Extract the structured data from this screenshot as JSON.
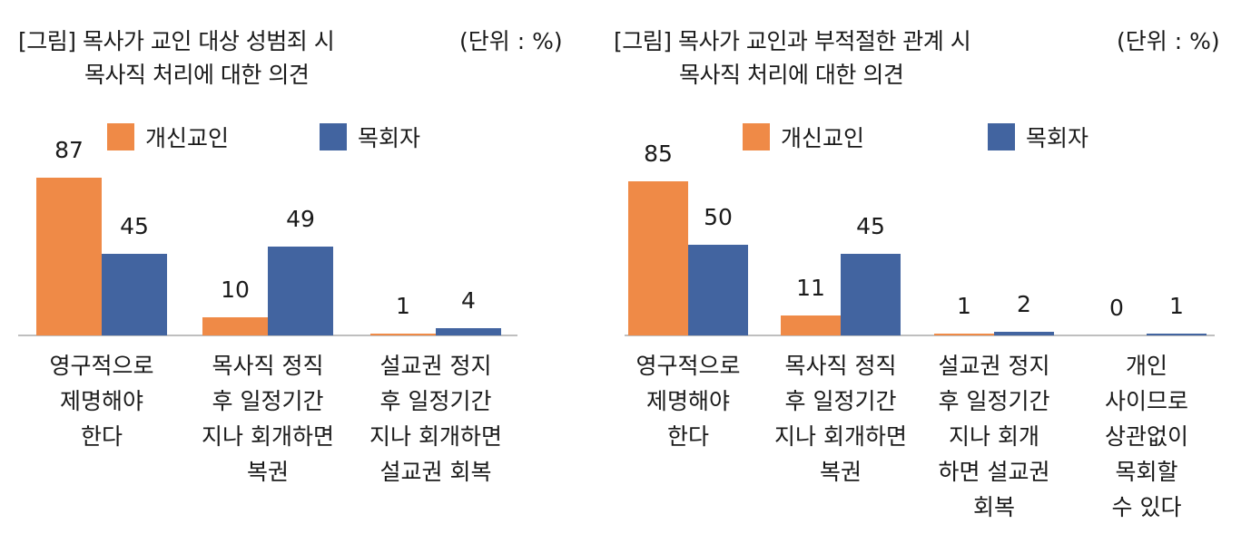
{
  "colors": {
    "devout": "#EF8A47",
    "pastor": "#4264A0",
    "axis": "#BFBFBF"
  },
  "chart_data": [
    {
      "type": "bar",
      "title": [
        "[그림] 목사가 교인 대상 성범죄 시",
        "목사직 처리에 대한 의견"
      ],
      "unit": "(단위 : %)",
      "categories": [
        "영구적으로\n제명해야\n한다",
        "목사직 정직\n후 일정기간\n지나 회개하면\n복권",
        "설교권 정지\n후 일정기간\n지나 회개하면\n설교권 회복"
      ],
      "series": [
        {
          "name": "개신교인",
          "values": [
            87,
            10,
            1
          ]
        },
        {
          "name": "목회자",
          "values": [
            45,
            49,
            4
          ]
        }
      ],
      "ylim": [
        0,
        100
      ],
      "legend": "top",
      "grid": false
    },
    {
      "type": "bar",
      "title": [
        "[그림] 목사가 교인과 부적절한 관계 시",
        "목사직 처리에 대한 의견"
      ],
      "unit": "(단위 : %)",
      "categories": [
        "영구적으로\n제명해야\n한다",
        "목사직 정직\n후 일정기간\n지나 회개하면\n복권",
        "설교권 정지\n후 일정기간\n지나 회개\n하면 설교권\n회복",
        "개인\n사이므로\n상관없이\n목회할\n수 있다"
      ],
      "series": [
        {
          "name": "개신교인",
          "values": [
            85,
            11,
            1,
            0
          ]
        },
        {
          "name": "목회자",
          "values": [
            50,
            45,
            2,
            1
          ]
        }
      ],
      "ylim": [
        0,
        100
      ],
      "legend": "top",
      "grid": false
    }
  ]
}
